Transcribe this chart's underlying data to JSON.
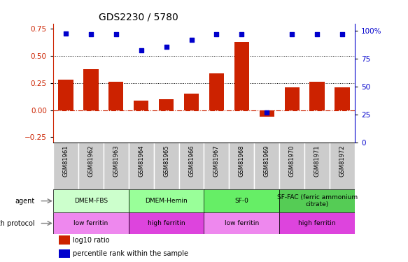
{
  "title": "GDS2230 / 5780",
  "samples": [
    "GSM81961",
    "GSM81962",
    "GSM81963",
    "GSM81964",
    "GSM81965",
    "GSM81966",
    "GSM81967",
    "GSM81968",
    "GSM81969",
    "GSM81970",
    "GSM81971",
    "GSM81972"
  ],
  "log10_ratio": [
    0.28,
    0.38,
    0.26,
    0.09,
    0.1,
    0.15,
    0.34,
    0.63,
    -0.06,
    0.21,
    0.26,
    0.21
  ],
  "percentile_rank": [
    98,
    97,
    97,
    83,
    86,
    92,
    97,
    97,
    27,
    97,
    97,
    97
  ],
  "bar_color": "#cc2200",
  "dot_color": "#0000cc",
  "hline_color": "#cc2200",
  "ylim_left": [
    -0.3,
    0.8
  ],
  "ylim_right": [
    0,
    106.67
  ],
  "yticks_left": [
    -0.25,
    0,
    0.25,
    0.5,
    0.75
  ],
  "yticks_right": [
    0,
    25,
    50,
    75,
    100
  ],
  "ytick_labels_right": [
    "0",
    "25",
    "50",
    "75",
    "100%"
  ],
  "hlines": [
    0.25,
    0.5
  ],
  "agent_groups": [
    {
      "label": "DMEM-FBS",
      "start": 0,
      "end": 3,
      "color": "#ccffcc"
    },
    {
      "label": "DMEM-Hemin",
      "start": 3,
      "end": 6,
      "color": "#99ff99"
    },
    {
      "label": "SF-0",
      "start": 6,
      "end": 9,
      "color": "#66ee66"
    },
    {
      "label": "SF-FAC (ferric ammonium\ncitrate)",
      "start": 9,
      "end": 12,
      "color": "#55cc55"
    }
  ],
  "growth_groups": [
    {
      "label": "low ferritin",
      "start": 0,
      "end": 3,
      "color": "#ee88ee"
    },
    {
      "label": "high ferritin",
      "start": 3,
      "end": 6,
      "color": "#dd44dd"
    },
    {
      "label": "low ferritin",
      "start": 6,
      "end": 9,
      "color": "#ee88ee"
    },
    {
      "label": "high ferritin",
      "start": 9,
      "end": 12,
      "color": "#dd44dd"
    }
  ],
  "agent_label": "agent",
  "growth_label": "growth protocol",
  "legend_bar_label": "log10 ratio",
  "legend_dot_label": "percentile rank within the sample",
  "bg_color": "#ffffff",
  "sample_cell_color": "#cccccc",
  "sample_cell_edge": "#ffffff"
}
